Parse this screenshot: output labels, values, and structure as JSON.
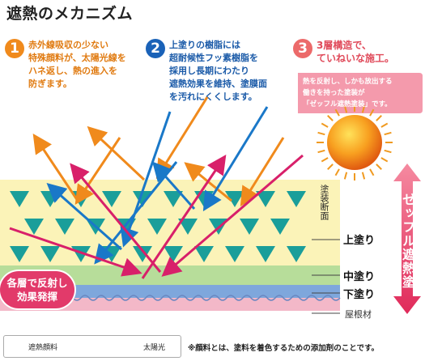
{
  "title": "遮熱のメカニズム",
  "points": [
    {
      "num": "1",
      "text": "赤外線吸収の少ない\n特殊顔料が、太陽光線を\nハネ返し、熱の進入を\n防ぎます。"
    },
    {
      "num": "2",
      "text": "上塗りの樹脂には\n超耐候性フッ素樹脂を\n採用し長期にわたり\n遮熱効果を維持、塗膜面\nを汚れにくくします。"
    },
    {
      "num": "3",
      "text": "3層構造で、\nていねいな施工。"
    }
  ],
  "point3_note": "熱を反射し、しかも放出する\n働きを持った塗装が\n「ゼッフル遮熱塗装」です。",
  "layers": {
    "cross_section": "塗装断面",
    "top": "上塗り",
    "middle": "中塗り",
    "bottom": "下塗り",
    "roof": "屋根材"
  },
  "bubble": "各層で反射し\n効果発揮",
  "vertical_banner": "ゼッフル遮熱塗装",
  "legend": {
    "pigment": "遮熱顔料",
    "sunlight": "太陽光"
  },
  "footnote": "※顔料とは、塗料を着色するための添加剤のことです。",
  "colors": {
    "orange": "#f08a1c",
    "blue": "#1a78c8",
    "magenta": "#d8206a",
    "pigment": "#1a9e9a",
    "top_coat": "#fbf3b8",
    "mid_coat": "#b7dd9a",
    "bottom_coat": "#7ea7dc",
    "roof": "#f3b8c8"
  },
  "icons": {
    "sun": "sun-icon",
    "pigment": "triangle-pigment-icon"
  }
}
